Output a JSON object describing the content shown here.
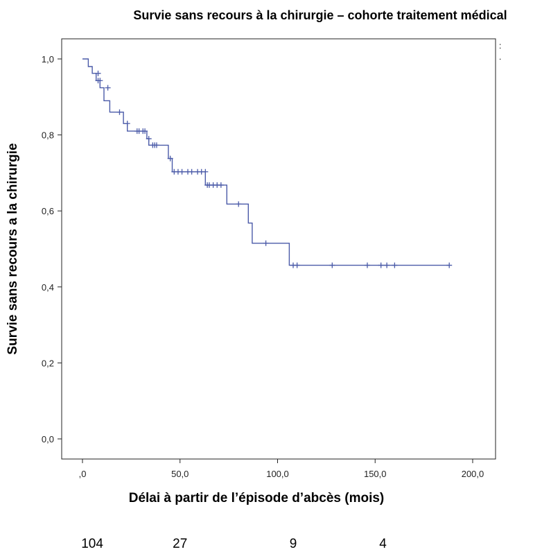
{
  "chart_data": {
    "type": "line",
    "title": "Survie sans recours à la chirurgie – cohorte traitement médical",
    "xlabel": "Délai à partir de l’épisode d’abcès (mois)",
    "ylabel": "Survie sans recours a la chirurgie",
    "xlim": [
      0,
      210
    ],
    "ylim": [
      0,
      1.0
    ],
    "x_ticks": [
      0,
      50,
      100,
      150,
      200
    ],
    "x_tick_labels": [
      ",0",
      "50,0",
      "100,0",
      "150,0",
      "200,0"
    ],
    "y_ticks": [
      0,
      0.2,
      0.4,
      0.6,
      0.8,
      1.0
    ],
    "y_tick_labels": [
      "0,0",
      "0,2",
      "0,4",
      "0,6",
      "0,8",
      "1,0"
    ],
    "grid": false,
    "line_color": "#4a5aa8",
    "series": [
      {
        "step_points": [
          [
            0,
            1.0
          ],
          [
            3,
            1.0
          ],
          [
            3,
            0.98
          ],
          [
            5,
            0.98
          ],
          [
            5,
            0.962
          ],
          [
            7,
            0.962
          ],
          [
            7,
            0.943
          ],
          [
            9,
            0.943
          ],
          [
            9,
            0.924
          ],
          [
            11,
            0.924
          ],
          [
            11,
            0.89
          ],
          [
            14,
            0.89
          ],
          [
            14,
            0.86
          ],
          [
            21,
            0.86
          ],
          [
            21,
            0.83
          ],
          [
            23,
            0.83
          ],
          [
            23,
            0.81
          ],
          [
            33,
            0.81
          ],
          [
            33,
            0.79
          ],
          [
            34,
            0.79
          ],
          [
            34,
            0.773
          ],
          [
            44,
            0.773
          ],
          [
            44,
            0.738
          ],
          [
            46,
            0.738
          ],
          [
            46,
            0.703
          ],
          [
            63,
            0.703
          ],
          [
            63,
            0.668
          ],
          [
            74,
            0.668
          ],
          [
            74,
            0.618
          ],
          [
            85,
            0.618
          ],
          [
            85,
            0.568
          ],
          [
            87,
            0.568
          ],
          [
            87,
            0.515
          ],
          [
            106,
            0.515
          ],
          [
            106,
            0.457
          ],
          [
            188,
            0.457
          ]
        ],
        "censored": [
          [
            8,
            0.962
          ],
          [
            8,
            0.943
          ],
          [
            9,
            0.943
          ],
          [
            13,
            0.924
          ],
          [
            19,
            0.86
          ],
          [
            23,
            0.83
          ],
          [
            28,
            0.81
          ],
          [
            29,
            0.81
          ],
          [
            31,
            0.81
          ],
          [
            32,
            0.81
          ],
          [
            34,
            0.79
          ],
          [
            36,
            0.773
          ],
          [
            37,
            0.773
          ],
          [
            38,
            0.773
          ],
          [
            45,
            0.738
          ],
          [
            47,
            0.703
          ],
          [
            49,
            0.703
          ],
          [
            51,
            0.703
          ],
          [
            54,
            0.703
          ],
          [
            56,
            0.703
          ],
          [
            59,
            0.703
          ],
          [
            61,
            0.703
          ],
          [
            63,
            0.703
          ],
          [
            64,
            0.668
          ],
          [
            65,
            0.668
          ],
          [
            67,
            0.668
          ],
          [
            69,
            0.668
          ],
          [
            71,
            0.668
          ],
          [
            80,
            0.618
          ],
          [
            94,
            0.515
          ],
          [
            108,
            0.457
          ],
          [
            110,
            0.457
          ],
          [
            128,
            0.457
          ],
          [
            146,
            0.457
          ],
          [
            153,
            0.457
          ],
          [
            156,
            0.457
          ],
          [
            160,
            0.457
          ],
          [
            188,
            0.457
          ]
        ]
      }
    ],
    "risk_table": {
      "values": [
        "104",
        "27",
        "9",
        "4"
      ],
      "at_x": [
        5,
        50,
        108,
        154
      ]
    },
    "corner_marks": [
      ":",
      "."
    ]
  }
}
